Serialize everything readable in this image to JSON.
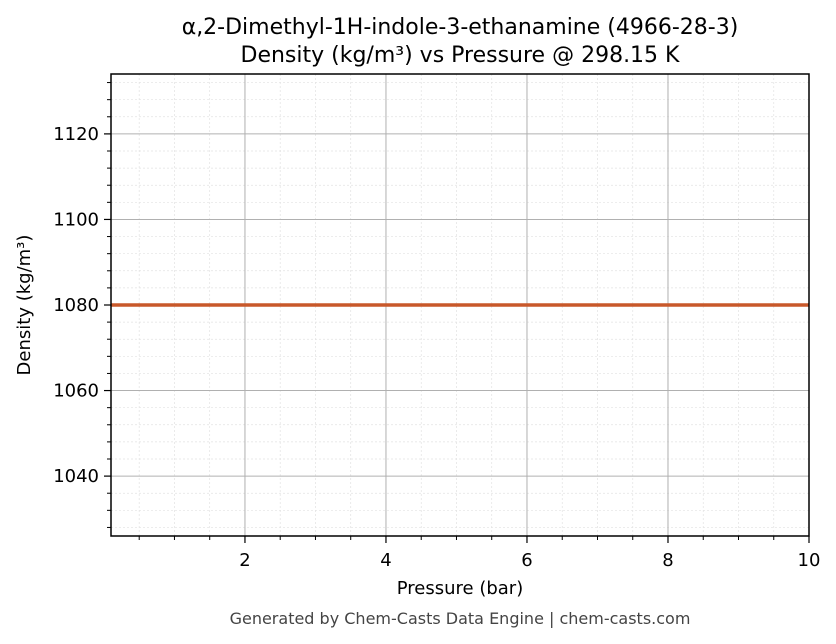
{
  "chart_data": {
    "type": "line",
    "title": "α,2-Dimethyl-1H-indole-3-ethanamine (4966-28-3)",
    "subtitle": "Density (kg/m³) vs Pressure @ 298.15 K",
    "xlabel": "Pressure (bar)",
    "ylabel": "Density (kg/m³)",
    "xlim": [
      0.1,
      10
    ],
    "ylim": [
      1026,
      1134
    ],
    "xticks": [
      2,
      4,
      6,
      8,
      10
    ],
    "yticks": [
      1040,
      1060,
      1080,
      1100,
      1120
    ],
    "grid": true,
    "series": [
      {
        "color": "#c8582a",
        "x": [
          0.1,
          1,
          2,
          3,
          4,
          5,
          6,
          7,
          8,
          9,
          10
        ],
        "y": [
          1080,
          1080,
          1080,
          1080,
          1080,
          1080,
          1080,
          1080,
          1080,
          1080,
          1080
        ]
      }
    ]
  },
  "footer": "Generated by Chem-Casts Data Engine | chem-casts.com"
}
